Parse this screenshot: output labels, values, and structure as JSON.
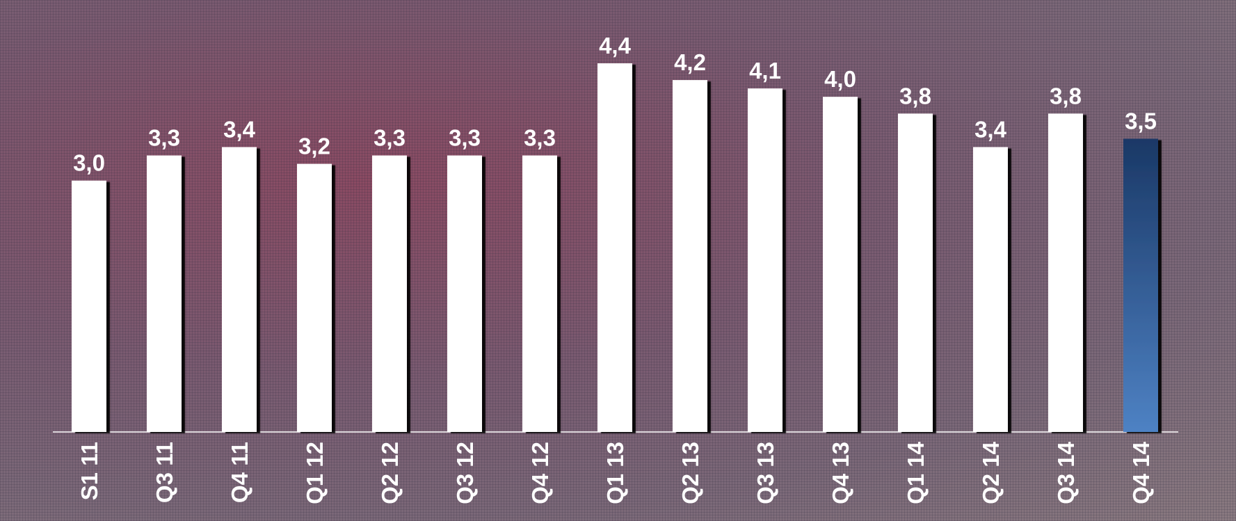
{
  "chart_data": {
    "type": "bar",
    "categories": [
      "S1 11",
      "Q3 11",
      "Q4 11",
      "Q1 12",
      "Q2 12",
      "Q3 12",
      "Q4 12",
      "Q1 13",
      "Q2 13",
      "Q3 13",
      "Q4 13",
      "Q1 14",
      "Q2 14",
      "Q3 14",
      "Q4 14"
    ],
    "values": [
      3.0,
      3.3,
      3.4,
      3.2,
      3.3,
      3.3,
      3.3,
      4.4,
      4.2,
      4.1,
      4.0,
      3.8,
      3.4,
      3.8,
      3.5
    ],
    "value_labels": [
      "3,0",
      "3,3",
      "3,4",
      "3,2",
      "3,3",
      "3,3",
      "3,3",
      "4,4",
      "4,2",
      "4,1",
      "4,0",
      "3,8",
      "3,4",
      "3,8",
      "3,5"
    ],
    "colors": [
      "#ffffff",
      "#ffffff",
      "#ffffff",
      "#ffffff",
      "#ffffff",
      "#ffffff",
      "#ffffff",
      "#ffffff",
      "#ffffff",
      "#ffffff",
      "#ffffff",
      "#ffffff",
      "#ffffff",
      "#ffffff",
      "#2f5c94"
    ]
  }
}
